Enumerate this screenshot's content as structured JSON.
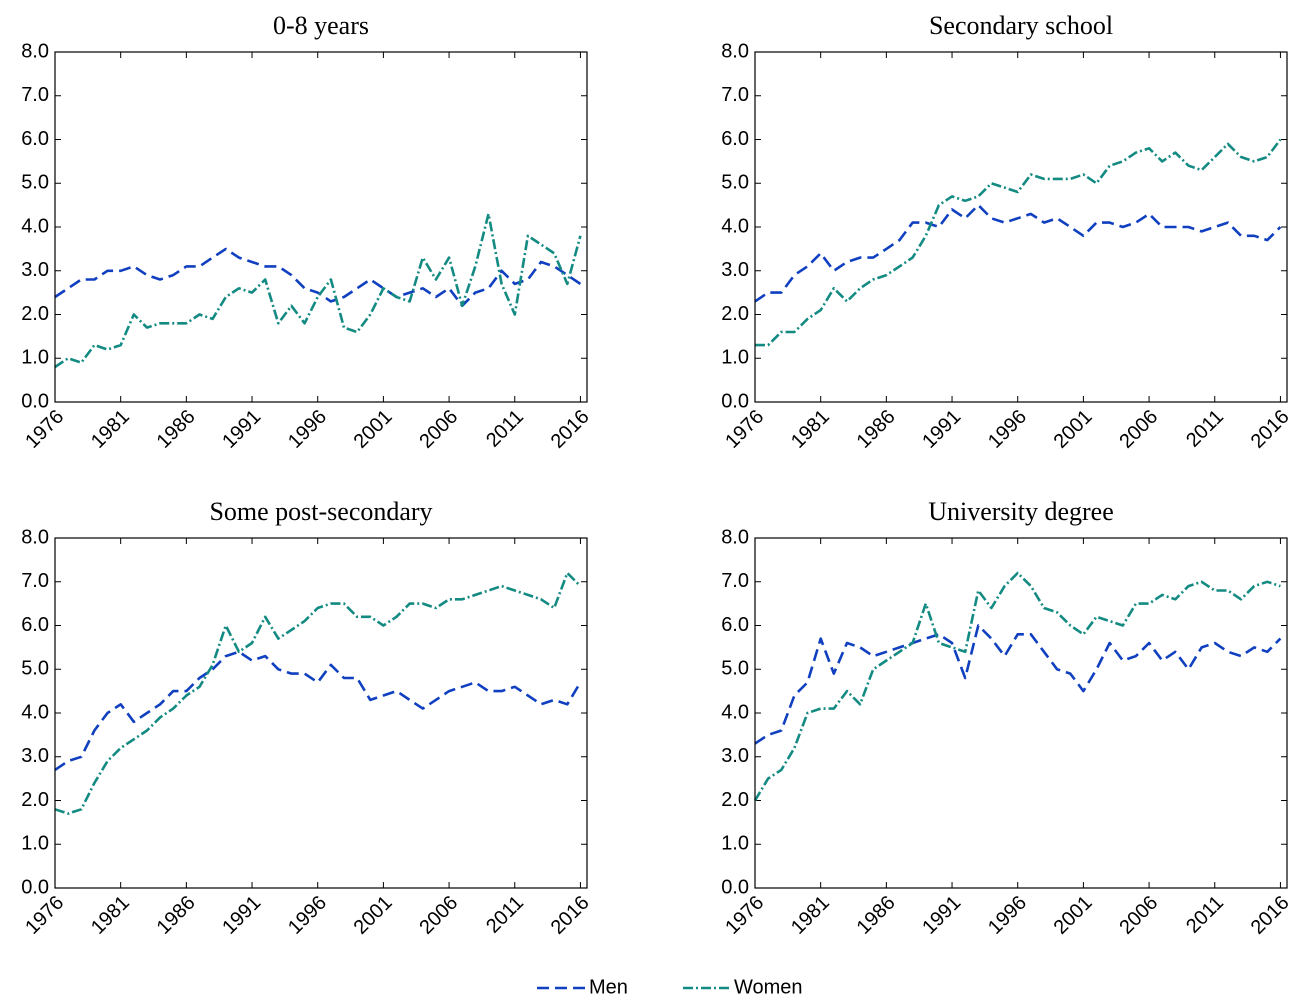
{
  "chart_data": [
    {
      "type": "line",
      "title": "0-8 years",
      "x": [
        1976,
        1977,
        1978,
        1979,
        1980,
        1981,
        1982,
        1983,
        1984,
        1985,
        1986,
        1987,
        1988,
        1989,
        1990,
        1991,
        1992,
        1993,
        1994,
        1995,
        1996,
        1997,
        1998,
        1999,
        2000,
        2001,
        2002,
        2003,
        2004,
        2005,
        2006,
        2007,
        2008,
        2009,
        2010,
        2011,
        2012,
        2013,
        2014,
        2015,
        2016
      ],
      "series": [
        {
          "name": "Men",
          "color": "#1040c0",
          "values": [
            2.4,
            2.6,
            2.8,
            2.8,
            3.0,
            3.0,
            3.1,
            2.9,
            2.8,
            2.9,
            3.1,
            3.1,
            3.3,
            3.5,
            3.3,
            3.2,
            3.1,
            3.1,
            2.9,
            2.6,
            2.5,
            2.3,
            2.4,
            2.6,
            2.8,
            2.6,
            2.4,
            2.5,
            2.6,
            2.4,
            2.6,
            2.2,
            2.5,
            2.6,
            3.0,
            2.7,
            2.8,
            3.2,
            3.1,
            2.9,
            2.7
          ]
        },
        {
          "name": "Women",
          "color": "#138a82",
          "values": [
            0.8,
            1.0,
            0.9,
            1.3,
            1.2,
            1.3,
            2.0,
            1.7,
            1.8,
            1.8,
            1.8,
            2.0,
            1.9,
            2.4,
            2.6,
            2.5,
            2.8,
            1.8,
            2.2,
            1.8,
            2.4,
            2.8,
            1.7,
            1.6,
            2.0,
            2.6,
            2.4,
            2.3,
            3.3,
            2.8,
            3.3,
            2.2,
            3.1,
            4.3,
            2.7,
            2.0,
            3.8,
            3.6,
            3.4,
            2.7,
            3.8
          ]
        }
      ],
      "xlim": [
        1976,
        2016.5
      ],
      "xticks": [
        1976,
        1981,
        1986,
        1991,
        1996,
        2001,
        2006,
        2011,
        2016
      ],
      "ylim": [
        0,
        8
      ],
      "yticks": [
        {
          "value": 0,
          "label": "0.0"
        },
        {
          "value": 1,
          "label": "1.0"
        },
        {
          "value": 2,
          "label": "2.0"
        },
        {
          "value": 3,
          "label": "3.0"
        },
        {
          "value": 4,
          "label": "4.0"
        },
        {
          "value": 5,
          "label": "5.0"
        },
        {
          "value": 6,
          "label": "6.0"
        },
        {
          "value": 7,
          "label": "7.0"
        },
        {
          "value": 8,
          "label": "8.0"
        }
      ]
    },
    {
      "type": "line",
      "title": "Secondary school",
      "x": [
        1976,
        1977,
        1978,
        1979,
        1980,
        1981,
        1982,
        1983,
        1984,
        1985,
        1986,
        1987,
        1988,
        1989,
        1990,
        1991,
        1992,
        1993,
        1994,
        1995,
        1996,
        1997,
        1998,
        1999,
        2000,
        2001,
        2002,
        2003,
        2004,
        2005,
        2006,
        2007,
        2008,
        2009,
        2010,
        2011,
        2012,
        2013,
        2014,
        2015,
        2016
      ],
      "series": [
        {
          "color": "#1040c0",
          "values": [
            2.3,
            2.5,
            2.5,
            2.9,
            3.1,
            3.4,
            3.0,
            3.2,
            3.3,
            3.3,
            3.5,
            3.7,
            4.1,
            4.1,
            4.0,
            4.4,
            4.2,
            4.5,
            4.2,
            4.1,
            4.2,
            4.3,
            4.1,
            4.2,
            4.0,
            3.8,
            4.1,
            4.1,
            4.0,
            4.1,
            4.3,
            4.0,
            4.0,
            4.0,
            3.9,
            4.0,
            4.1,
            3.8,
            3.8,
            3.7,
            4.0
          ]
        },
        {
          "color": "#138a82",
          "values": [
            1.3,
            1.3,
            1.6,
            1.6,
            1.9,
            2.1,
            2.6,
            2.3,
            2.6,
            2.8,
            2.9,
            3.1,
            3.3,
            3.8,
            4.5,
            4.7,
            4.6,
            4.7,
            5.0,
            4.9,
            4.8,
            5.2,
            5.1,
            5.1,
            5.1,
            5.2,
            5.0,
            5.4,
            5.5,
            5.7,
            5.8,
            5.5,
            5.7,
            5.4,
            5.3,
            5.6,
            5.9,
            5.6,
            5.5,
            5.6,
            6.0
          ]
        }
      ],
      "xlim": [
        1976,
        2016.5
      ],
      "xticks": [
        1976,
        1981,
        1986,
        1991,
        1996,
        2001,
        2006,
        2011,
        2016
      ],
      "ylim": [
        0,
        8
      ],
      "yticks": [
        {
          "value": 0,
          "label": "0.0"
        },
        {
          "value": 1,
          "label": "1.0"
        },
        {
          "value": 2,
          "label": "2.0"
        },
        {
          "value": 3,
          "label": "3.0"
        },
        {
          "value": 4,
          "label": "4.0"
        },
        {
          "value": 5,
          "label": "5.0"
        },
        {
          "value": 6,
          "label": "6.0"
        },
        {
          "value": 7,
          "label": "7.0"
        },
        {
          "value": 8,
          "label": "8.0"
        }
      ]
    },
    {
      "type": "line",
      "title": "Some post-secondary",
      "x": [
        1976,
        1977,
        1978,
        1979,
        1980,
        1981,
        1982,
        1983,
        1984,
        1985,
        1986,
        1987,
        1988,
        1989,
        1990,
        1991,
        1992,
        1993,
        1994,
        1995,
        1996,
        1997,
        1998,
        1999,
        2000,
        2001,
        2002,
        2003,
        2004,
        2005,
        2006,
        2007,
        2008,
        2009,
        2010,
        2011,
        2012,
        2013,
        2014,
        2015,
        2016
      ],
      "series": [
        {
          "color": "#1040c0",
          "values": [
            2.7,
            2.9,
            3.0,
            3.6,
            4.0,
            4.2,
            3.8,
            4.0,
            4.2,
            4.5,
            4.5,
            4.8,
            5.0,
            5.3,
            5.4,
            5.2,
            5.3,
            5.0,
            4.9,
            4.9,
            4.7,
            5.1,
            4.8,
            4.8,
            4.3,
            4.4,
            4.5,
            4.3,
            4.1,
            4.3,
            4.5,
            4.6,
            4.7,
            4.5,
            4.5,
            4.6,
            4.4,
            4.2,
            4.3,
            4.2,
            4.7
          ]
        },
        {
          "color": "#138a82",
          "values": [
            1.8,
            1.7,
            1.8,
            2.4,
            2.9,
            3.2,
            3.4,
            3.6,
            3.9,
            4.1,
            4.4,
            4.6,
            5.1,
            6.0,
            5.4,
            5.6,
            6.2,
            5.7,
            5.9,
            6.1,
            6.4,
            6.5,
            6.5,
            6.2,
            6.2,
            6.0,
            6.2,
            6.5,
            6.5,
            6.4,
            6.6,
            6.6,
            6.7,
            6.8,
            6.9,
            6.8,
            6.7,
            6.6,
            6.4,
            7.2,
            6.9
          ]
        }
      ],
      "xlim": [
        1976,
        2016.5
      ],
      "xticks": [
        1976,
        1981,
        1986,
        1991,
        1996,
        2001,
        2006,
        2011,
        2016
      ],
      "ylim": [
        0,
        8
      ],
      "yticks": [
        {
          "value": 0,
          "label": "0.0"
        },
        {
          "value": 1,
          "label": "1.0"
        },
        {
          "value": 2,
          "label": "2.0"
        },
        {
          "value": 3,
          "label": "3.0"
        },
        {
          "value": 4,
          "label": "4.0"
        },
        {
          "value": 5,
          "label": "5.0"
        },
        {
          "value": 6,
          "label": "6.0"
        },
        {
          "value": 7,
          "label": "7.0"
        },
        {
          "value": 8,
          "label": "8.0"
        }
      ]
    },
    {
      "type": "line",
      "title": "University degree",
      "x": [
        1976,
        1977,
        1978,
        1979,
        1980,
        1981,
        1982,
        1983,
        1984,
        1985,
        1986,
        1987,
        1988,
        1989,
        1990,
        1991,
        1992,
        1993,
        1994,
        1995,
        1996,
        1997,
        1998,
        1999,
        2000,
        2001,
        2002,
        2003,
        2004,
        2005,
        2006,
        2007,
        2008,
        2009,
        2010,
        2011,
        2012,
        2013,
        2014,
        2015,
        2016
      ],
      "series": [
        {
          "color": "#1040c0",
          "values": [
            3.3,
            3.5,
            3.6,
            4.4,
            4.7,
            5.7,
            4.9,
            5.6,
            5.5,
            5.3,
            5.4,
            5.5,
            5.6,
            5.7,
            5.8,
            5.6,
            4.8,
            6.0,
            5.7,
            5.3,
            5.8,
            5.8,
            5.4,
            5.0,
            4.9,
            4.5,
            5.0,
            5.6,
            5.2,
            5.3,
            5.6,
            5.2,
            5.4,
            5.0,
            5.5,
            5.6,
            5.4,
            5.3,
            5.5,
            5.4,
            5.7
          ]
        },
        {
          "color": "#138a82",
          "values": [
            2.0,
            2.5,
            2.7,
            3.2,
            4.0,
            4.1,
            4.1,
            4.5,
            4.2,
            5.0,
            5.2,
            5.4,
            5.6,
            6.5,
            5.6,
            5.5,
            5.4,
            6.8,
            6.4,
            6.9,
            7.2,
            6.9,
            6.4,
            6.3,
            6.0,
            5.8,
            6.2,
            6.1,
            6.0,
            6.5,
            6.5,
            6.7,
            6.6,
            6.9,
            7.0,
            6.8,
            6.8,
            6.6,
            6.9,
            7.0,
            6.9
          ]
        }
      ],
      "xlim": [
        1976,
        2016.5
      ],
      "xticks": [
        1976,
        1981,
        1986,
        1991,
        1996,
        2001,
        2006,
        2011,
        2016
      ],
      "ylim": [
        0,
        8
      ],
      "yticks": [
        {
          "value": 0,
          "label": "0.0"
        },
        {
          "value": 1,
          "label": "1.0"
        },
        {
          "value": 2,
          "label": "2.0"
        },
        {
          "value": 3,
          "label": "3.0"
        },
        {
          "value": 4,
          "label": "4.0"
        },
        {
          "value": 5,
          "label": "5.0"
        },
        {
          "value": 6,
          "label": "6.0"
        },
        {
          "value": 7,
          "label": "7.0"
        },
        {
          "value": 8,
          "label": "8.0"
        }
      ]
    }
  ]
}
